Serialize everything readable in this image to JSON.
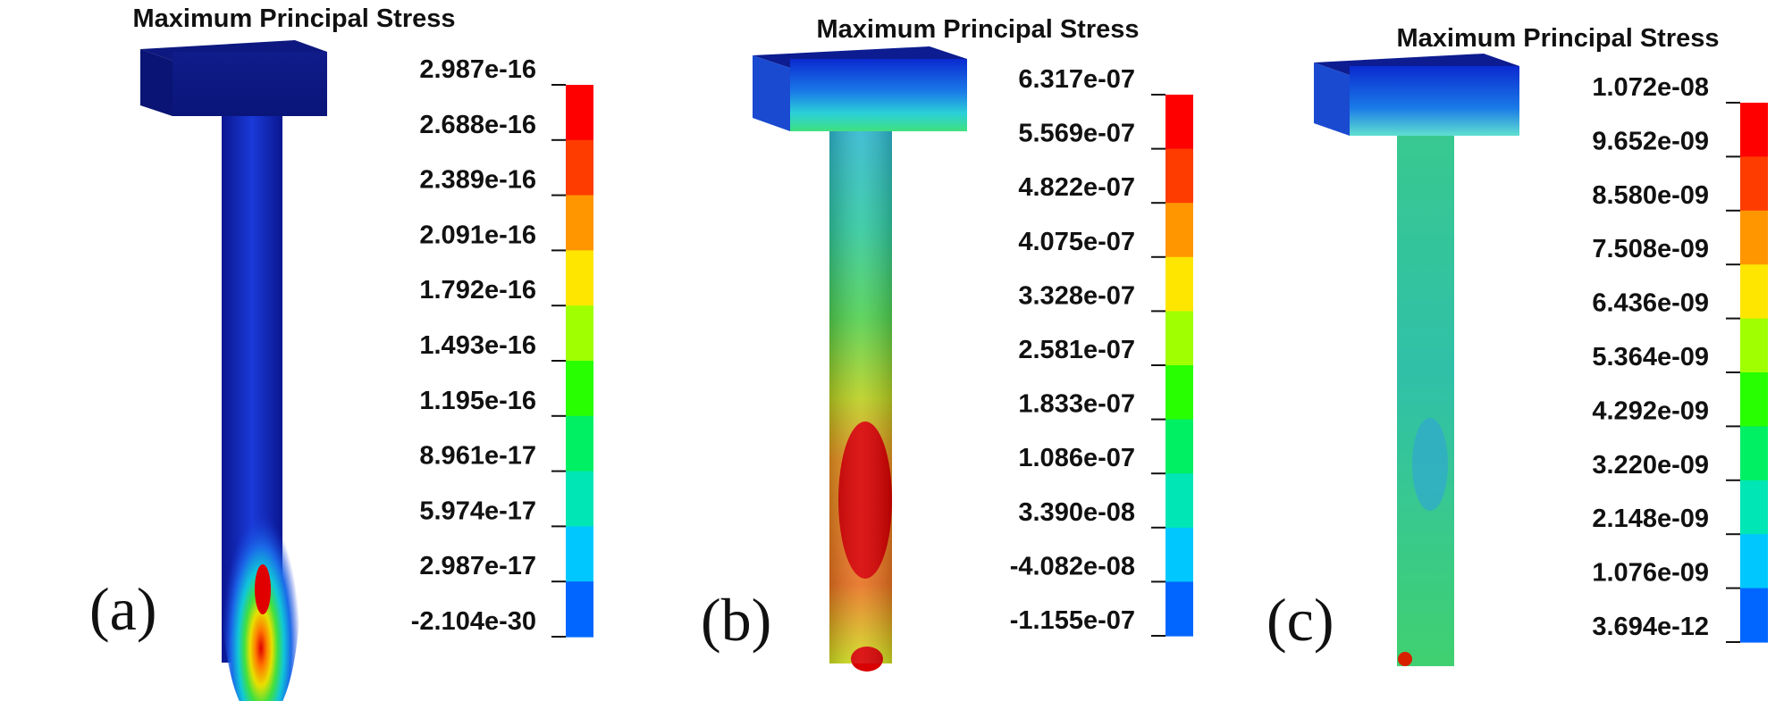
{
  "palette": [
    "#0000ff",
    "#0066ff",
    "#00c8ff",
    "#00e6b4",
    "#00f064",
    "#28ff00",
    "#a0ff00",
    "#ffe600",
    "#ff9600",
    "#ff3c00",
    "#ff0000"
  ],
  "panels": [
    {
      "id": "a",
      "title": "Maximum Principal Stress",
      "label": "(a)",
      "legend": [
        "2.987e-16",
        "2.688e-16",
        "2.389e-16",
        "2.091e-16",
        "1.792e-16",
        "1.493e-16",
        "1.195e-16",
        "8.961e-17",
        "5.974e-17",
        "2.987e-17",
        "-2.104e-30"
      ]
    },
    {
      "id": "b",
      "title": "Maximum Principal Stress",
      "label": "(b)",
      "legend": [
        "6.317e-07",
        "5.569e-07",
        "4.822e-07",
        "4.075e-07",
        "3.328e-07",
        "2.581e-07",
        "1.833e-07",
        "1.086e-07",
        "3.390e-08",
        "-4.082e-08",
        "-1.155e-07"
      ]
    },
    {
      "id": "c",
      "title": "Maximum Principal Stress",
      "label": "(c)",
      "legend": [
        "1.072e-08",
        "9.652e-09",
        "8.580e-09",
        "7.508e-09",
        "6.436e-09",
        "5.364e-09",
        "4.292e-09",
        "3.220e-09",
        "2.148e-09",
        "1.076e-09",
        "3.694e-12"
      ]
    }
  ]
}
